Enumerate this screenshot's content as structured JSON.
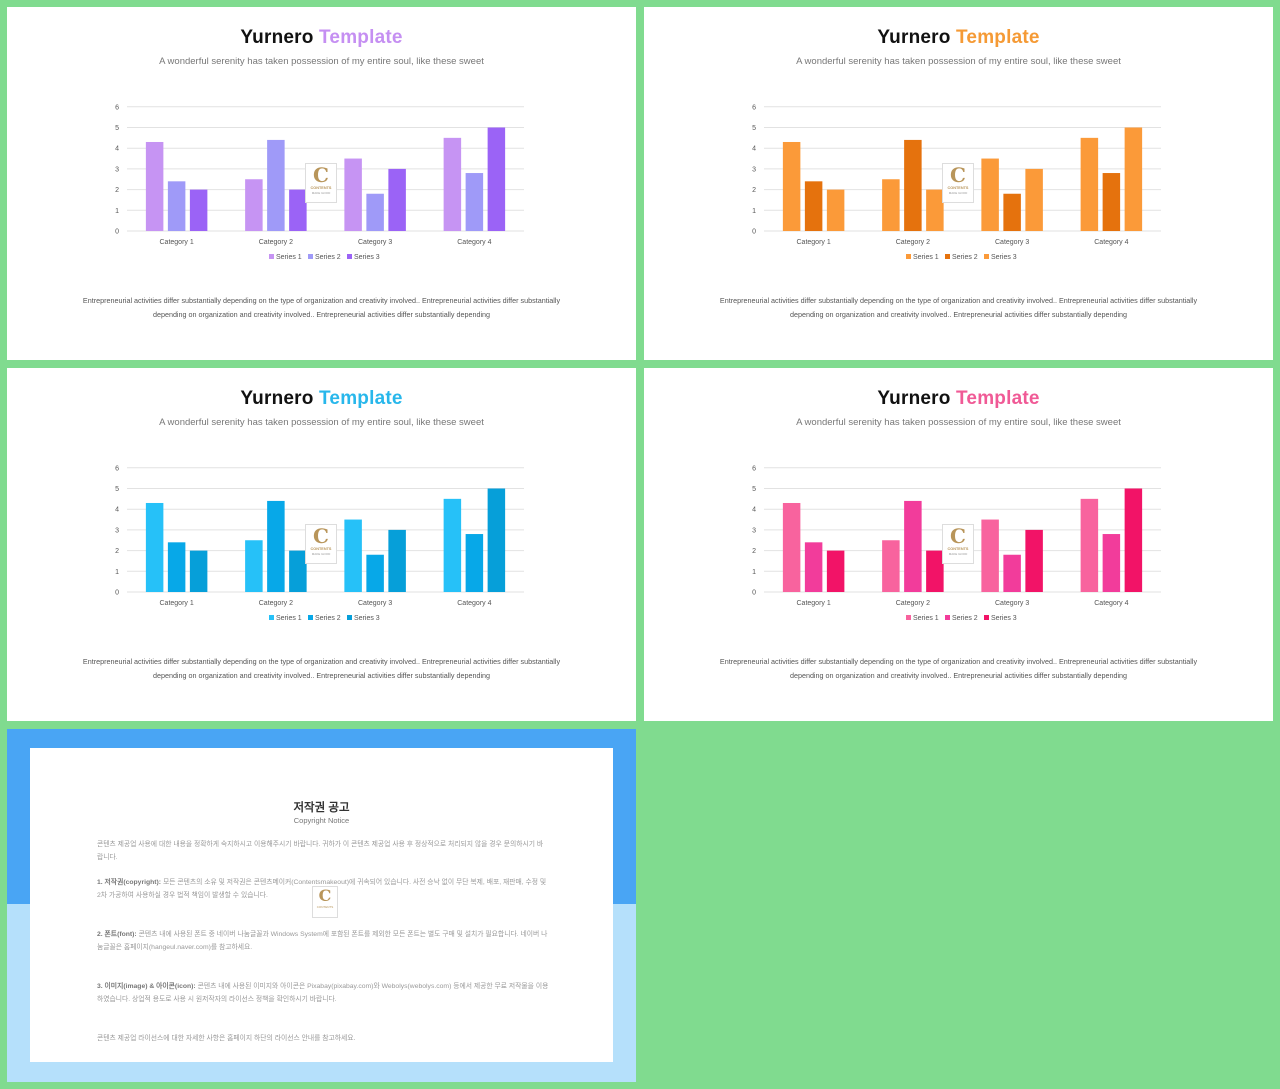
{
  "slides": [
    {
      "title_main": "Yurnero",
      "title_accent": "Template",
      "accent_color": "#c58ff2",
      "subtitle": "A wonderful serenity has taken possession of my entire soul, like these sweet",
      "caption_line1": "Entrepreneurial activities differ substantially depending on the type of organization and creativity involved.. Entrepreneurial activities differ substantially",
      "caption_line2": "depending on organization and creativity involved.. Entrepreneurial activities differ substantially depending",
      "colors": [
        "#c694f3",
        "#9f9af8",
        "#9b63f6"
      ]
    },
    {
      "title_main": "Yurnero",
      "title_accent": "Template",
      "accent_color": "#f59a35",
      "subtitle": "A wonderful serenity has taken possession of my entire soul, like these sweet",
      "caption_line1": "Entrepreneurial activities differ substantially depending on the type of organization and creativity involved.. Entrepreneurial activities differ substantially",
      "caption_line2": "depending on organization and creativity involved.. Entrepreneurial activities differ substantially depending",
      "colors": [
        "#fb9a39",
        "#e5720d",
        "#fb9a39"
      ]
    },
    {
      "title_main": "Yurnero",
      "title_accent": "Template",
      "accent_color": "#28b7eb",
      "subtitle": "A wonderful serenity has taken possession of my entire soul, like these sweet",
      "caption_line1": "Entrepreneurial activities differ substantially depending on the type of organization and creativity involved.. Entrepreneurial activities differ substantially",
      "caption_line2": "depending on organization and creativity involved.. Entrepreneurial activities differ substantially depending",
      "colors": [
        "#26c1f8",
        "#07a8e8",
        "#069fd9"
      ]
    },
    {
      "title_main": "Yurnero",
      "title_accent": "Template",
      "accent_color": "#f05a96",
      "subtitle": "A wonderful serenity has taken possession of my entire soul, like these sweet",
      "caption_line1": "Entrepreneurial activities differ substantially depending on the type of organization and creativity involved.. Entrepreneurial activities differ substantially",
      "caption_line2": "depending on organization and creativity involved.. Entrepreneurial activities differ substantially depending",
      "colors": [
        "#f8639e",
        "#f23c9b",
        "#f21367"
      ]
    }
  ],
  "chart_data": {
    "type": "bar",
    "categories": [
      "Category 1",
      "Category 2",
      "Category 3",
      "Category 4"
    ],
    "series": [
      {
        "name": "Series 1",
        "values": [
          4.3,
          2.5,
          3.5,
          4.5
        ]
      },
      {
        "name": "Series 2",
        "values": [
          2.4,
          4.4,
          1.8,
          2.8
        ]
      },
      {
        "name": "Series 3",
        "values": [
          2,
          2,
          3,
          5
        ]
      }
    ],
    "yticks": [
      0,
      1,
      2,
      3,
      4,
      5,
      6
    ],
    "ylim": [
      0,
      6
    ],
    "grid": true,
    "legend": "bottom"
  },
  "watermark": {
    "letter": "C",
    "text": "CONTENTS",
    "sub": "MAKE GOOD"
  },
  "notice": {
    "title": "저작권 공고",
    "subtitle": "Copyright Notice",
    "p1": "콘텐츠 제공업 사용에 대한 내용을 정확하게 숙지하시고 이용해주시기 바랍니다. 귀하가 이 콘텐츠 제공업 사용 후 정상적으로 처리되지 않을 경우 문의하시기 바랍니다.",
    "p2_head": "1. 저작권(copyright):",
    "p2": " 모든 콘텐츠의 소유 및 저작권은 콘텐츠메이커(Contentsmakeout)에 귀속되어 있습니다. 사전 승낙 없이 무단 복제, 배포, 재판매, 수정 및 2차 가공하여 사용하실 경우 법적 책임이 발생할 수 있습니다.",
    "p3_head": "2. 폰트(font):",
    "p3": " 콘텐츠 내에 사용된 폰트 중 네이버 나눔글꼴과 Windows System에 포함된 폰트를 제외한 모든 폰트는 별도 구매 및 설치가 필요합니다. 네이버 나눔글꼴은 홈페이지(hangeul.naver.com)를 참고하세요.",
    "p4_head": "3. 이미지(image) & 아이콘(icon):",
    "p4": " 콘텐츠 내에 사용된 이미지와 아이콘은 Pixabay(pixabay.com)와 Webolys(webolys.com) 등에서 제공한 무료 저작물을 이용하였습니다. 상업적 용도로 사용 시 원저작자의 라이선스 정책을 확인하시기 바랍니다.",
    "p5": "콘텐츠 제공업 라이선스에 대한 자세한 사항은 홈페이지 하단의 라이선스 안내를 참고하세요."
  }
}
